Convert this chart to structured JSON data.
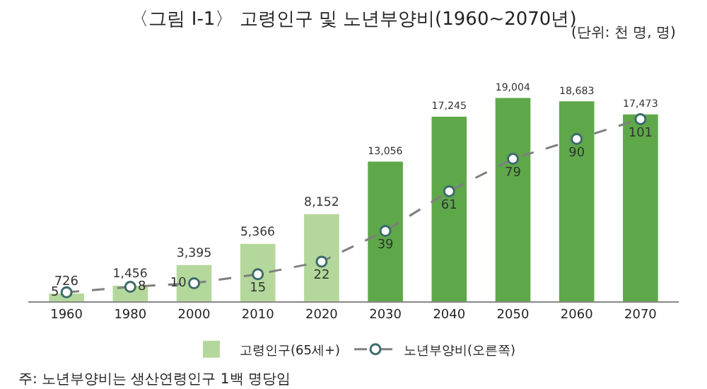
{
  "chart_data": {
    "type": "bar",
    "title": "〈그림 Ⅰ-1〉 고령인구 및 노년부양비(1960~2070년)",
    "subtitle": "(단위: 천 명, 명)",
    "categories": [
      "1960",
      "1980",
      "2000",
      "2010",
      "2020",
      "2030",
      "2040",
      "2050",
      "2060",
      "2070"
    ],
    "series": [
      {
        "name": "고령인구(65세+)",
        "value_labels": [
          "726",
          "1,456",
          "3,395",
          "5,366",
          "8,152",
          "13,056",
          "17,245",
          "19,004",
          "18,683",
          "17,473"
        ],
        "color": "#b4d89b",
        "colors": [
          "#b4d89b",
          "#b4d89b",
          "#b4d89b",
          "#b4d89b",
          "#b4d89b",
          "#5ea84a",
          "#5ea84a",
          "#5ea84a",
          "#5ea84a",
          "#5ea84a"
        ],
        "values": [
          726,
          1456,
          3395,
          5366,
          8152,
          13056,
          17245,
          19004,
          18683,
          17473
        ]
      },
      {
        "name": "노년부양비(오른쪽)",
        "type": "line",
        "axis": "y2",
        "color": "#7f7f7f",
        "value_labels": [
          "5",
          "8",
          "10",
          "15",
          "22",
          "39",
          "61",
          "79",
          "90",
          "101"
        ],
        "values": [
          5,
          8,
          10,
          15,
          22,
          39,
          61,
          79,
          90,
          101
        ]
      }
    ],
    "marker": "circle",
    "line_style": "dashed",
    "legend": "bottom",
    "annotations": [
      "주: 노년부양비는 생산연령인구 1백 명당임"
    ]
  }
}
